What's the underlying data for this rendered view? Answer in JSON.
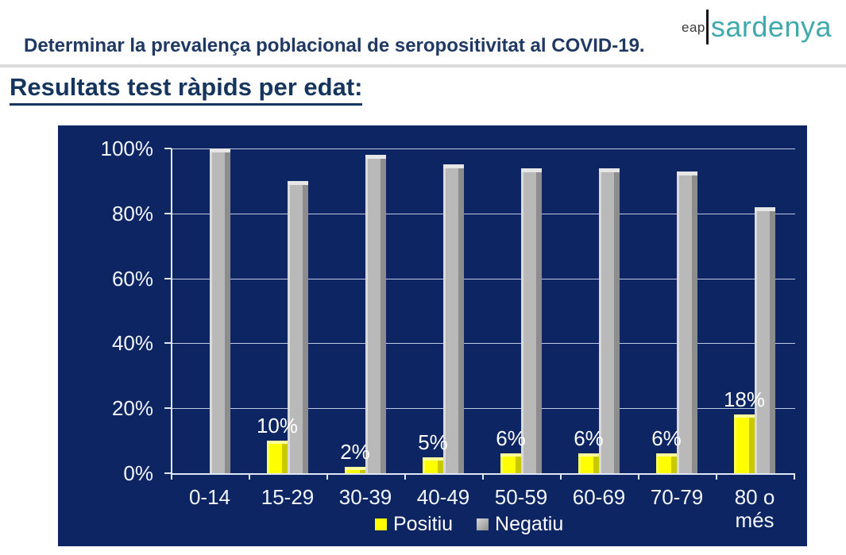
{
  "header": {
    "title": "Determinar la prevalença poblacional de seropositivitat al COVID-19.",
    "logo": {
      "prefix": "eap",
      "name": "sardenya",
      "accent_color": "#3fa9ac"
    }
  },
  "section": {
    "title": "Resultats test ràpids per edat:"
  },
  "chart_data": {
    "type": "bar",
    "title": "",
    "categories": [
      "0-14",
      "15-29",
      "30-39",
      "40-49",
      "50-59",
      "60-69",
      "70-79",
      "80 o més"
    ],
    "series": [
      {
        "name": "Positiu",
        "color": "#ffff00",
        "values": [
          0,
          10,
          2,
          5,
          6,
          6,
          6,
          18
        ],
        "labels": [
          "",
          "10%",
          "2%",
          "5%",
          "6%",
          "6%",
          "6%",
          "18%"
        ]
      },
      {
        "name": "Negatiu",
        "color": "#bfbfbf",
        "values": [
          100,
          90,
          98,
          95,
          94,
          94,
          93,
          82
        ],
        "labels": [
          "",
          "",
          "",
          "",
          "",
          "",
          "",
          ""
        ]
      }
    ],
    "y_tick_labels": [
      "100%",
      "80%",
      "60%",
      "40%",
      "20%",
      "0%"
    ],
    "ylim": [
      0,
      100
    ],
    "grid": true,
    "legend_position": "bottom",
    "plot_background": "#0d2563",
    "text_color": "#ffffff"
  }
}
